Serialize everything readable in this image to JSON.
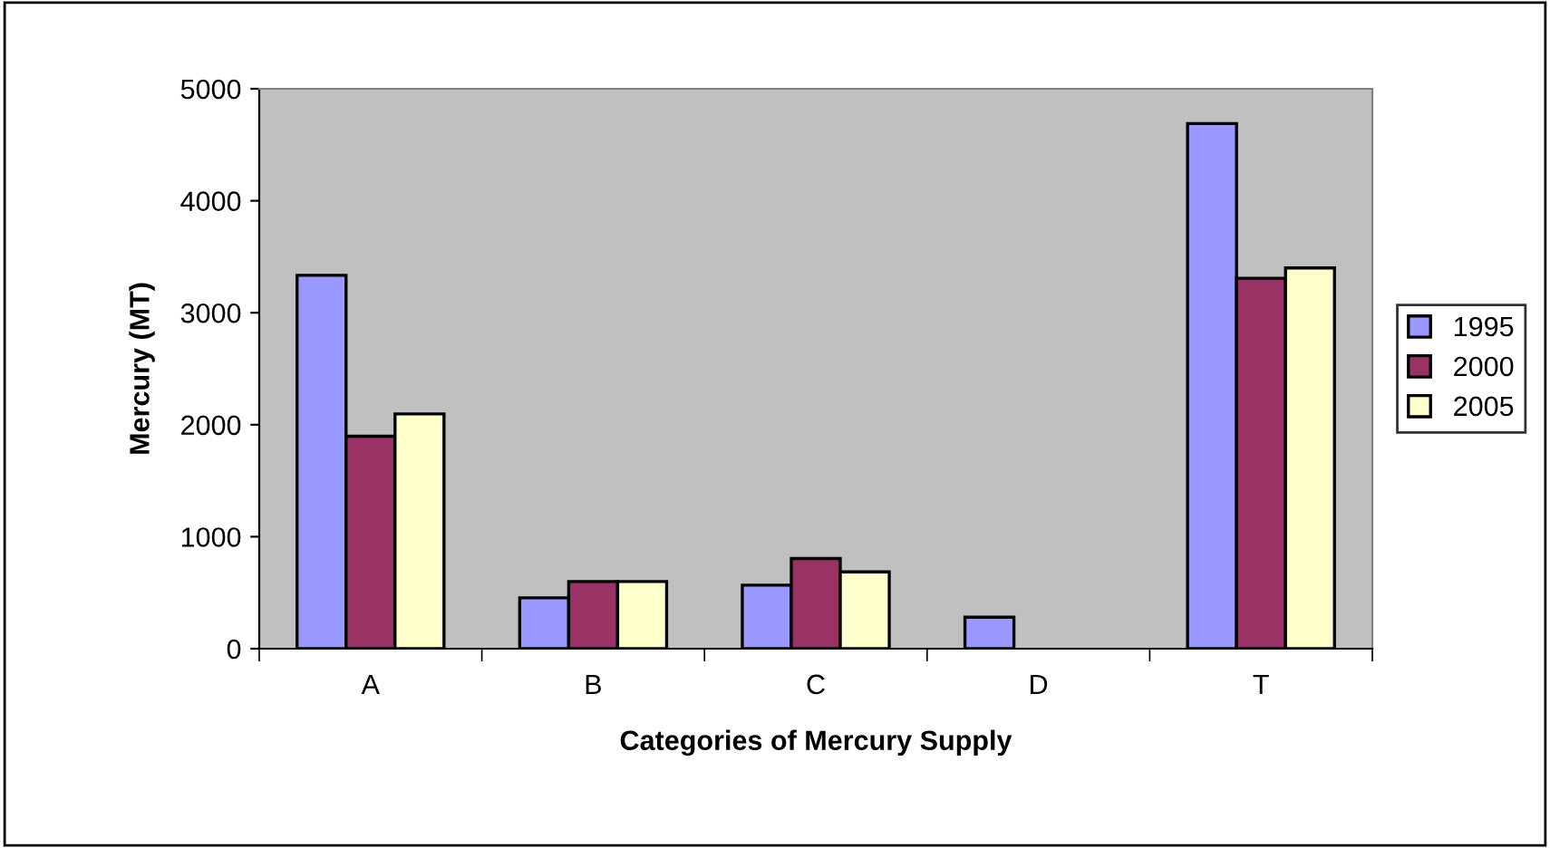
{
  "chart_data": {
    "type": "bar",
    "xlabel": "Categories of Mercury Supply",
    "ylabel": "Mercury (MT)",
    "categories": [
      "A",
      "B",
      "C",
      "D",
      "T"
    ],
    "series": [
      {
        "name": "1995",
        "color": "#9999ff",
        "values": [
          3335,
          454,
          568,
          281,
          4690
        ]
      },
      {
        "name": "2000",
        "color": "#993366",
        "values": [
          1897,
          600,
          805,
          null,
          3308
        ]
      },
      {
        "name": "2005",
        "color": "#ffffcc",
        "values": [
          2097,
          600,
          686,
          null,
          3400
        ]
      }
    ],
    "ylim": [
      0,
      5000
    ],
    "yticks": [
      0,
      1000,
      2000,
      3000,
      4000,
      5000
    ],
    "grid": false,
    "legend": "right"
  }
}
